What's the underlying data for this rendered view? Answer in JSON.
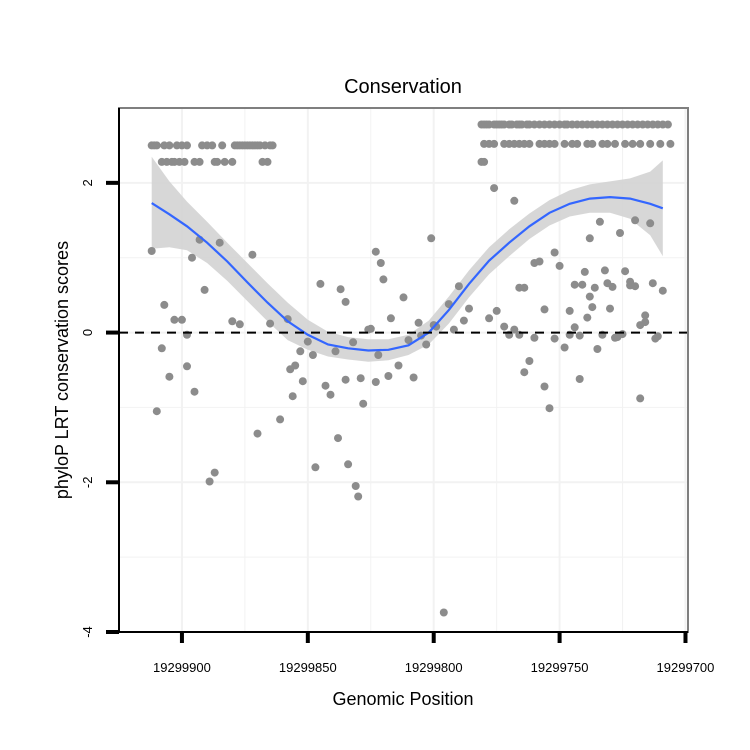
{
  "chart_data": {
    "type": "scatter",
    "title": "Conservation",
    "xlabel": "Genomic Position",
    "ylabel": "phyloP LRT conservation scores",
    "x_reversed": true,
    "xlim": [
      19299925,
      19299699
    ],
    "ylim": [
      -4,
      3.0
    ],
    "x_ticks": [
      19299900,
      19299850,
      19299800,
      19299750,
      19299700
    ],
    "x_tick_labels": [
      "19299900",
      "19299850",
      "19299800",
      "19299750",
      "19299700"
    ],
    "y_ticks": [
      -4,
      -2,
      0,
      2
    ],
    "y_tick_labels": [
      "-4",
      "-2",
      "0",
      "2"
    ],
    "grid": true,
    "reference_line": {
      "y": 0,
      "style": "dashed"
    },
    "colors": {
      "points": "#8c8c8c",
      "smooth_line": "#3366ff",
      "ribbon": "#d3d3d3",
      "panel_border": "#7f7f7f",
      "grid": "#f2f2f2",
      "reference_line": "#000000"
    },
    "points": [
      [
        19299912,
        2.5
      ],
      [
        19299911,
        2.5
      ],
      [
        19299910,
        2.5
      ],
      [
        19299908,
        2.28
      ],
      [
        19299907,
        2.5
      ],
      [
        19299906,
        2.28
      ],
      [
        19299905,
        2.5
      ],
      [
        19299904,
        2.28
      ],
      [
        19299903,
        2.28
      ],
      [
        19299902,
        2.5
      ],
      [
        19299901,
        2.28
      ],
      [
        19299900,
        2.5
      ],
      [
        19299899,
        2.28
      ],
      [
        19299898,
        2.5
      ],
      [
        19299895,
        2.28
      ],
      [
        19299893,
        2.28
      ],
      [
        19299892,
        2.5
      ],
      [
        19299890,
        2.5
      ],
      [
        19299888,
        2.5
      ],
      [
        19299887,
        2.28
      ],
      [
        19299886,
        2.28
      ],
      [
        19299884,
        2.5
      ],
      [
        19299883,
        2.28
      ],
      [
        19299880,
        2.28
      ],
      [
        19299879,
        2.5
      ],
      [
        19299878,
        2.5
      ],
      [
        19299877,
        2.5
      ],
      [
        19299876,
        2.5
      ],
      [
        19299875,
        2.5
      ],
      [
        19299874,
        2.5
      ],
      [
        19299873,
        2.5
      ],
      [
        19299872,
        2.5
      ],
      [
        19299871,
        2.5
      ],
      [
        19299870,
        2.5
      ],
      [
        19299869,
        2.5
      ],
      [
        19299868,
        2.28
      ],
      [
        19299867,
        2.5
      ],
      [
        19299866,
        2.28
      ],
      [
        19299865,
        2.5
      ],
      [
        19299864,
        2.5
      ],
      [
        19299781,
        2.28
      ],
      [
        19299780,
        2.28
      ],
      [
        19299776,
        1.93
      ],
      [
        19299768,
        1.76
      ],
      [
        19299778,
        0.19
      ],
      [
        19299775,
        0.29
      ],
      [
        19299772,
        0.08
      ],
      [
        19299770,
        -0.03
      ],
      [
        19299768,
        0.04
      ],
      [
        19299766,
        -0.03
      ],
      [
        19299764,
        -0.53
      ],
      [
        19299762,
        -0.38
      ],
      [
        19299760,
        -0.07
      ],
      [
        19299758,
        0.95
      ],
      [
        19299756,
        -0.72
      ],
      [
        19299754,
        -1.01
      ],
      [
        19299752,
        1.07
      ],
      [
        19299750,
        0.89
      ],
      [
        19299748,
        -0.2
      ],
      [
        19299746,
        0.29
      ],
      [
        19299744,
        0.07
      ],
      [
        19299742,
        -0.62
      ],
      [
        19299740,
        0.81
      ],
      [
        19299738,
        0.48
      ],
      [
        19299736,
        0.6
      ],
      [
        19299734,
        1.48
      ],
      [
        19299732,
        0.83
      ],
      [
        19299730,
        0.32
      ],
      [
        19299728,
        -0.07
      ],
      [
        19299726,
        1.33
      ],
      [
        19299724,
        0.82
      ],
      [
        19299722,
        0.68
      ],
      [
        19299720,
        1.5
      ],
      [
        19299718,
        0.1
      ],
      [
        19299716,
        0.14
      ],
      [
        19299714,
        1.46
      ],
      [
        19299712,
        -0.08
      ],
      [
        19299796,
        -3.74
      ],
      [
        19299912,
        1.09
      ],
      [
        19299910,
        -1.05
      ],
      [
        19299908,
        -0.21
      ],
      [
        19299907,
        0.37
      ],
      [
        19299905,
        -0.59
      ],
      [
        19299903,
        0.17
      ],
      [
        19299900,
        0.17
      ],
      [
        19299898,
        -0.03
      ],
      [
        19299896,
        1.0
      ],
      [
        19299895,
        -0.79
      ],
      [
        19299893,
        1.24
      ],
      [
        19299891,
        0.57
      ],
      [
        19299889,
        -1.99
      ],
      [
        19299887,
        -1.87
      ],
      [
        19299885,
        1.2
      ],
      [
        19299880,
        0.15
      ],
      [
        19299877,
        0.11
      ],
      [
        19299872,
        1.04
      ],
      [
        19299870,
        -1.35
      ],
      [
        19299865,
        0.12
      ],
      [
        19299861,
        -1.16
      ],
      [
        19299858,
        0.18
      ],
      [
        19299856,
        -0.85
      ],
      [
        19299855,
        -0.44
      ],
      [
        19299853,
        -0.25
      ],
      [
        19299852,
        -0.65
      ],
      [
        19299850,
        -0.12
      ],
      [
        19299848,
        -0.3
      ],
      [
        19299847,
        -1.8
      ],
      [
        19299845,
        0.65
      ],
      [
        19299843,
        -0.71
      ],
      [
        19299841,
        -0.83
      ],
      [
        19299839,
        -0.25
      ],
      [
        19299838,
        -1.41
      ],
      [
        19299837,
        0.58
      ],
      [
        19299835,
        -0.63
      ],
      [
        19299834,
        -1.76
      ],
      [
        19299832,
        -0.13
      ],
      [
        19299831,
        -2.05
      ],
      [
        19299830,
        -2.19
      ],
      [
        19299829,
        -0.61
      ],
      [
        19299828,
        -0.95
      ],
      [
        19299826,
        0.04
      ],
      [
        19299825,
        0.05
      ],
      [
        19299823,
        -0.66
      ],
      [
        19299822,
        -0.3
      ],
      [
        19299821,
        0.93
      ],
      [
        19299820,
        0.71
      ],
      [
        19299818,
        -0.58
      ],
      [
        19299817,
        0.19
      ],
      [
        19299814,
        -0.44
      ],
      [
        19299812,
        0.47
      ],
      [
        19299810,
        -0.1
      ],
      [
        19299808,
        -0.6
      ],
      [
        19299806,
        0.13
      ],
      [
        19299805,
        -0.04
      ],
      [
        19299803,
        -0.16
      ],
      [
        19299801,
        1.26
      ],
      [
        19299799,
        0.08
      ],
      [
        19299800,
        0.1
      ],
      [
        19299898,
        -0.45
      ],
      [
        19299857,
        -0.49
      ],
      [
        19299835,
        0.41
      ],
      [
        19299823,
        1.08
      ],
      [
        19299794,
        0.38
      ],
      [
        19299790,
        0.62
      ],
      [
        19299786,
        0.32
      ],
      [
        19299781,
        2.78
      ],
      [
        19299780,
        2.78
      ],
      [
        19299779,
        2.78
      ],
      [
        19299778,
        2.78
      ],
      [
        19299776,
        2.78
      ],
      [
        19299775,
        2.78
      ],
      [
        19299774,
        2.78
      ],
      [
        19299773,
        2.78
      ],
      [
        19299772,
        2.78
      ],
      [
        19299770,
        2.78
      ],
      [
        19299769,
        2.78
      ],
      [
        19299767,
        2.78
      ],
      [
        19299766,
        2.78
      ],
      [
        19299765,
        2.78
      ],
      [
        19299763,
        2.78
      ],
      [
        19299762,
        2.78
      ],
      [
        19299760,
        2.78
      ],
      [
        19299758,
        2.78
      ],
      [
        19299756,
        2.78
      ],
      [
        19299754,
        2.78
      ],
      [
        19299752,
        2.78
      ],
      [
        19299750,
        2.78
      ],
      [
        19299748,
        2.78
      ],
      [
        19299747,
        2.78
      ],
      [
        19299745,
        2.78
      ],
      [
        19299743,
        2.78
      ],
      [
        19299741,
        2.78
      ],
      [
        19299739,
        2.78
      ],
      [
        19299737,
        2.78
      ],
      [
        19299735,
        2.78
      ],
      [
        19299733,
        2.78
      ],
      [
        19299731,
        2.78
      ],
      [
        19299729,
        2.78
      ],
      [
        19299727,
        2.78
      ],
      [
        19299725,
        2.78
      ],
      [
        19299723,
        2.78
      ],
      [
        19299721,
        2.78
      ],
      [
        19299719,
        2.78
      ],
      [
        19299717,
        2.78
      ],
      [
        19299715,
        2.78
      ],
      [
        19299713,
        2.78
      ],
      [
        19299711,
        2.78
      ],
      [
        19299709,
        2.78
      ],
      [
        19299707,
        2.78
      ],
      [
        19299780,
        2.52
      ],
      [
        19299778,
        2.52
      ],
      [
        19299776,
        2.52
      ],
      [
        19299772,
        2.52
      ],
      [
        19299770,
        2.52
      ],
      [
        19299768,
        2.52
      ],
      [
        19299766,
        2.52
      ],
      [
        19299764,
        2.52
      ],
      [
        19299762,
        2.52
      ],
      [
        19299758,
        2.52
      ],
      [
        19299756,
        2.52
      ],
      [
        19299754,
        2.52
      ],
      [
        19299752,
        2.52
      ],
      [
        19299748,
        2.52
      ],
      [
        19299745,
        2.52
      ],
      [
        19299743,
        2.52
      ],
      [
        19299739,
        2.52
      ],
      [
        19299737,
        2.52
      ],
      [
        19299733,
        2.52
      ],
      [
        19299731,
        2.52
      ],
      [
        19299728,
        2.52
      ],
      [
        19299724,
        2.52
      ],
      [
        19299721,
        2.52
      ],
      [
        19299718,
        2.52
      ],
      [
        19299714,
        2.52
      ],
      [
        19299710,
        2.52
      ],
      [
        19299706,
        2.52
      ],
      [
        19299746,
        -0.03
      ],
      [
        19299744,
        0.64
      ],
      [
        19299742,
        -0.04
      ],
      [
        19299741,
        0.64
      ],
      [
        19299739,
        0.2
      ],
      [
        19299738,
        1.26
      ],
      [
        19299737,
        0.34
      ],
      [
        19299735,
        -0.22
      ],
      [
        19299733,
        -0.03
      ],
      [
        19299731,
        0.66
      ],
      [
        19299729,
        0.61
      ],
      [
        19299727,
        -0.06
      ],
      [
        19299725,
        -0.02
      ],
      [
        19299722,
        0.63
      ],
      [
        19299720,
        0.62
      ],
      [
        19299718,
        -0.88
      ],
      [
        19299716,
        0.23
      ],
      [
        19299713,
        0.66
      ],
      [
        19299711,
        -0.05
      ],
      [
        19299709,
        0.56
      ],
      [
        19299766,
        0.6
      ],
      [
        19299764,
        0.6
      ],
      [
        19299760,
        0.93
      ],
      [
        19299756,
        0.31
      ],
      [
        19299752,
        -0.08
      ],
      [
        19299792,
        0.04
      ],
      [
        19299788,
        0.16
      ]
    ],
    "smooth_line": [
      [
        19299912,
        1.73
      ],
      [
        19299905,
        1.58
      ],
      [
        19299898,
        1.42
      ],
      [
        19299890,
        1.2
      ],
      [
        19299882,
        0.95
      ],
      [
        19299874,
        0.67
      ],
      [
        19299866,
        0.4
      ],
      [
        19299858,
        0.15
      ],
      [
        19299850,
        -0.03
      ],
      [
        19299842,
        -0.16
      ],
      [
        19299834,
        -0.21
      ],
      [
        19299826,
        -0.24
      ],
      [
        19299818,
        -0.23
      ],
      [
        19299810,
        -0.17
      ],
      [
        19299802,
        0.0
      ],
      [
        19299794,
        0.3
      ],
      [
        19299786,
        0.65
      ],
      [
        19299778,
        0.96
      ],
      [
        19299770,
        1.2
      ],
      [
        19299762,
        1.42
      ],
      [
        19299754,
        1.6
      ],
      [
        19299746,
        1.72
      ],
      [
        19299738,
        1.79
      ],
      [
        19299730,
        1.81
      ],
      [
        19299722,
        1.79
      ],
      [
        19299714,
        1.72
      ],
      [
        19299709,
        1.66
      ]
    ],
    "ribbon_upper": [
      2.35,
      2.02,
      1.75,
      1.48,
      1.2,
      0.93,
      0.66,
      0.4,
      0.17,
      0.01,
      -0.06,
      -0.09,
      -0.09,
      -0.03,
      0.16,
      0.48,
      0.83,
      1.14,
      1.38,
      1.59,
      1.77,
      1.9,
      1.98,
      2.02,
      2.06,
      2.15,
      2.3
    ],
    "ribbon_lower": [
      1.12,
      1.14,
      1.1,
      0.93,
      0.69,
      0.42,
      0.15,
      -0.1,
      -0.23,
      -0.32,
      -0.36,
      -0.39,
      -0.37,
      -0.3,
      -0.16,
      0.12,
      0.47,
      0.78,
      1.02,
      1.25,
      1.43,
      1.55,
      1.6,
      1.6,
      1.52,
      1.3,
      1.02
    ]
  }
}
